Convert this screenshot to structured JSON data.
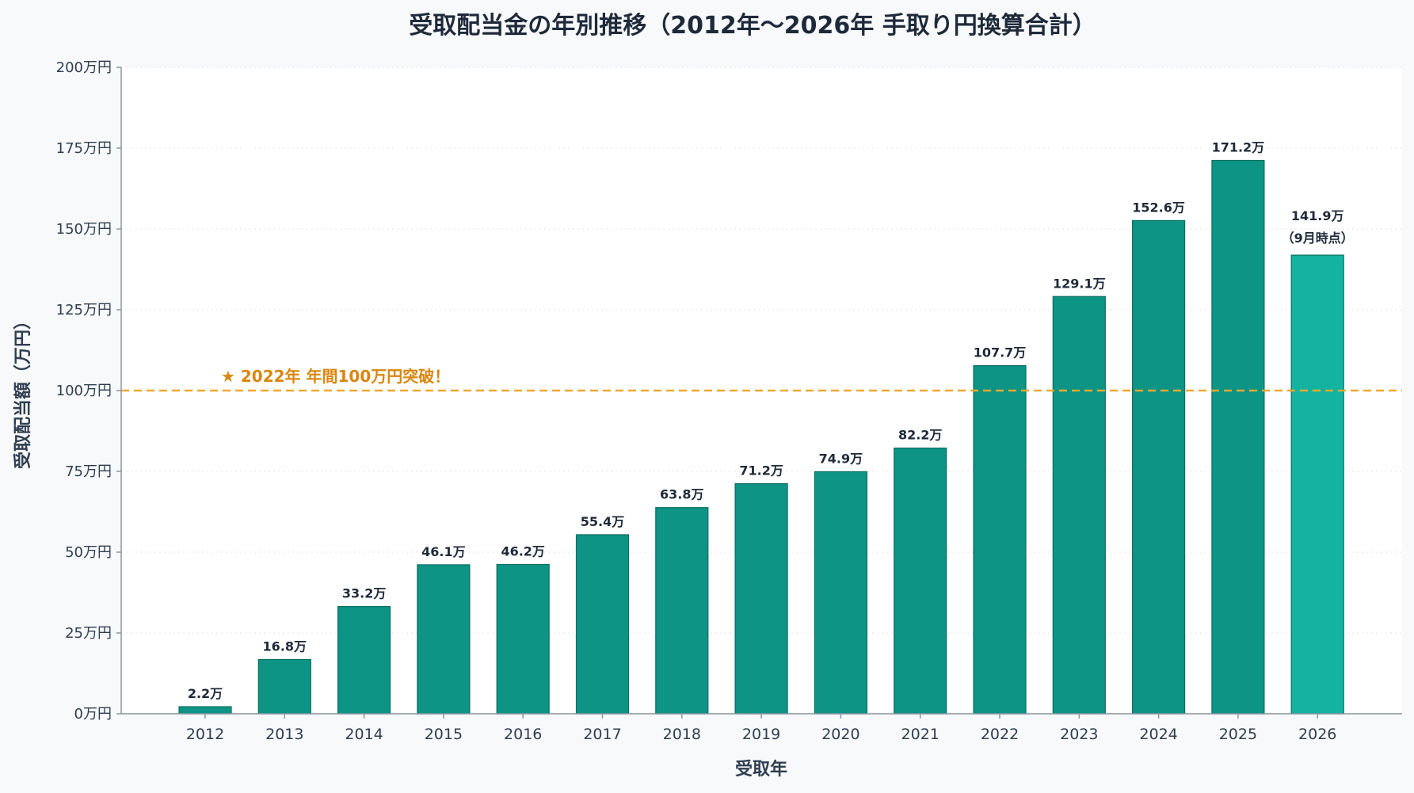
{
  "chart_data": {
    "type": "bar",
    "title": "受取配当金の年別推移（2012年〜2026年 手取り円換算合計）",
    "xlabel": "受取年",
    "ylabel": "受取配当額（万円）",
    "ylim": [
      0,
      200
    ],
    "y_ticks": [
      {
        "value": 0,
        "label": "0万円"
      },
      {
        "value": 25,
        "label": "25万円"
      },
      {
        "value": 50,
        "label": "50万円"
      },
      {
        "value": 75,
        "label": "75万円"
      },
      {
        "value": 100,
        "label": "100万円"
      },
      {
        "value": 125,
        "label": "125万円"
      },
      {
        "value": 150,
        "label": "150万円"
      },
      {
        "value": 175,
        "label": "175万円"
      },
      {
        "value": 200,
        "label": "200万円"
      }
    ],
    "grid": "horizontal-dotted",
    "categories": [
      "2012",
      "2013",
      "2014",
      "2015",
      "2016",
      "2017",
      "2018",
      "2019",
      "2020",
      "2021",
      "2022",
      "2023",
      "2024",
      "2025",
      "2026"
    ],
    "values": [
      2.2,
      16.8,
      33.2,
      46.1,
      46.2,
      55.4,
      63.8,
      71.2,
      74.9,
      82.2,
      107.7,
      129.1,
      152.6,
      171.2,
      141.9
    ],
    "data_labels": [
      "2.2万",
      "16.8万",
      "33.2万",
      "46.1万",
      "46.2万",
      "55.4万",
      "63.8万",
      "71.2万",
      "74.9万",
      "82.2万",
      "107.7万",
      "129.1万",
      "152.6万",
      "171.2万",
      "141.9万"
    ],
    "data_label_notes": [
      "",
      "",
      "",
      "",
      "",
      "",
      "",
      "",
      "",
      "",
      "",
      "",
      "",
      "",
      "（9月時点）"
    ],
    "bar_color": "#0d9484",
    "highlight_bar_color": "#13b3a0",
    "highlight_index": 14,
    "reference_line": {
      "value": 100,
      "label": "★ 2022年 年間100万円突破！",
      "color": "#f0a830",
      "text_color": "#d9860f",
      "style": "dashed"
    }
  }
}
